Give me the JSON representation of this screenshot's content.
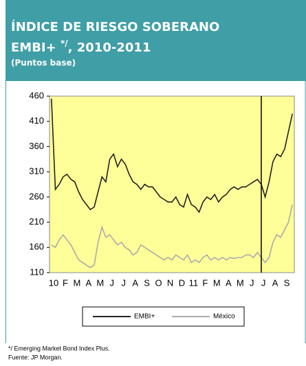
{
  "chart_data": {
    "type": "line",
    "title_line1": "ÍNDICE DE RIESGO SOBERANO",
    "title_parts": [
      "EMBI+ ",
      "*/",
      ", 2010-2011"
    ],
    "subtitle": "(Puntos base)",
    "categories": [
      "10",
      null,
      null,
      "F",
      null,
      null,
      "M",
      null,
      null,
      "A",
      null,
      null,
      "M",
      null,
      null,
      "J",
      null,
      null,
      "J",
      null,
      null,
      "A",
      null,
      null,
      "S",
      null,
      null,
      "O",
      null,
      null,
      "N",
      null,
      null,
      "D",
      null,
      null,
      "11",
      null,
      null,
      "F",
      null,
      null,
      "M",
      null,
      null,
      "A",
      null,
      null,
      "M",
      null,
      null,
      "J",
      null,
      null,
      "J",
      null,
      null,
      "A",
      null,
      null,
      "S",
      null,
      null
    ],
    "series": [
      {
        "name": "EMBI+",
        "color": "#222222",
        "values": [
          455,
          275,
          285,
          300,
          305,
          295,
          290,
          270,
          255,
          245,
          235,
          240,
          270,
          300,
          290,
          335,
          345,
          320,
          335,
          325,
          305,
          290,
          285,
          275,
          285,
          280,
          280,
          270,
          260,
          255,
          250,
          250,
          260,
          245,
          240,
          265,
          245,
          240,
          230,
          250,
          260,
          255,
          265,
          250,
          260,
          265,
          275,
          280,
          275,
          280,
          280,
          285,
          290,
          295,
          285,
          260,
          290,
          330,
          345,
          340,
          355,
          390,
          425
        ]
      },
      {
        "name": "México",
        "color": "#aaaaaa",
        "values": [
          165,
          160,
          175,
          185,
          175,
          165,
          150,
          135,
          130,
          125,
          120,
          125,
          170,
          200,
          180,
          185,
          175,
          165,
          170,
          160,
          155,
          145,
          150,
          165,
          160,
          155,
          150,
          145,
          140,
          135,
          140,
          135,
          145,
          140,
          135,
          145,
          130,
          135,
          130,
          140,
          145,
          135,
          140,
          135,
          140,
          135,
          140,
          138,
          140,
          140,
          145,
          145,
          140,
          150,
          140,
          130,
          140,
          170,
          185,
          180,
          195,
          210,
          245
        ]
      }
    ],
    "vertical_line_x": 54,
    "ylim": [
      110,
      460
    ],
    "yticks": [
      110,
      160,
      210,
      260,
      310,
      360,
      410,
      460
    ],
    "legend": "bottom",
    "plot_background": "#ffff99",
    "footnotes": [
      "*/ Emerging Market Bond Index Plus.",
      "Fuente:  JP Morgan."
    ]
  }
}
